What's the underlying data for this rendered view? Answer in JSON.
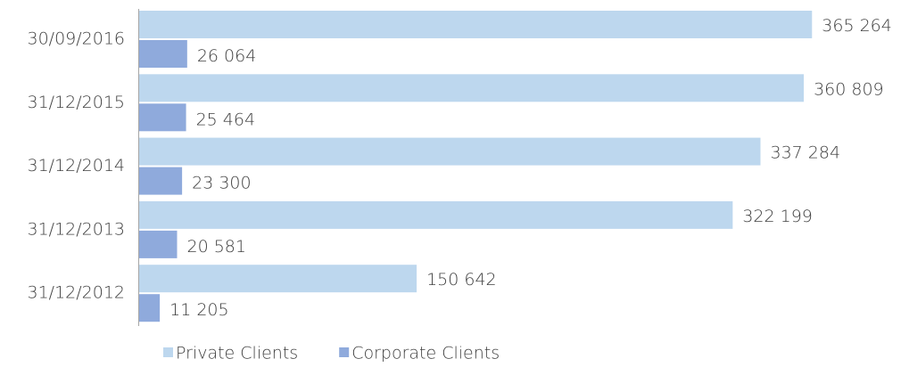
{
  "chart_data": {
    "type": "hbar",
    "categories": [
      "30/09/2016",
      "31/12/2015",
      "31/12/2014",
      "31/12/2013",
      "31/12/2012"
    ],
    "series": [
      {
        "name": "Private Clients",
        "color": "#bdd7ee",
        "values": [
          365264,
          360809,
          337284,
          322199,
          150642
        ],
        "value_labels": [
          "365 264",
          "360 809",
          "337 284",
          "322 199",
          "150 642"
        ]
      },
      {
        "name": "Corporate Clients",
        "color": "#8faadc",
        "values": [
          26064,
          25464,
          23300,
          20581,
          11205
        ],
        "value_labels": [
          "26 064",
          "25 464",
          "23 300",
          "20 581",
          "11 205"
        ]
      }
    ],
    "xlim": [
      0,
      400000
    ],
    "legend": "bottom"
  }
}
